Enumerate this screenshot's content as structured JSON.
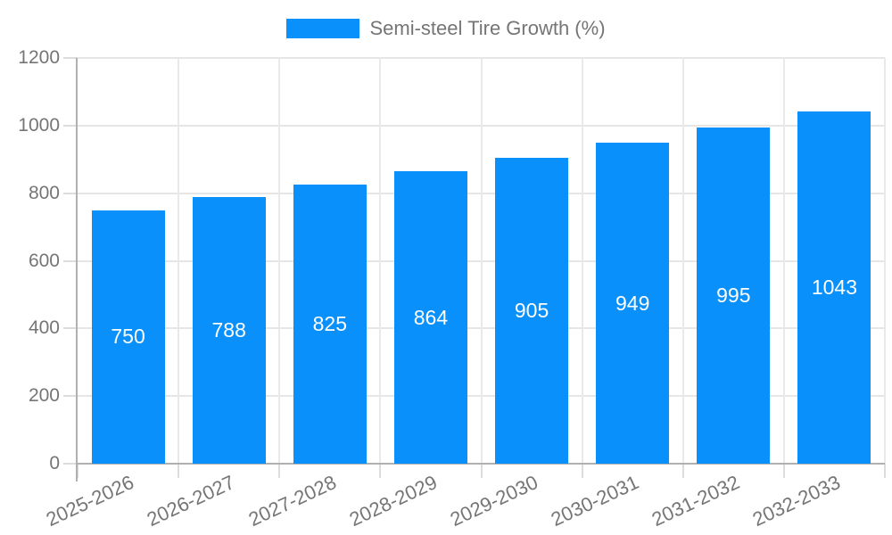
{
  "legend": {
    "label": "Semi-steel Tire Growth (%)"
  },
  "colors": {
    "bar": "#0990fa",
    "axis_text": "#757575",
    "grid": "#e6e6e6",
    "axis_line": "#b0b0b0",
    "value_label": "#ffffff",
    "background": "#ffffff"
  },
  "chart_data": {
    "type": "bar",
    "title": "",
    "categories": [
      "2025-2026",
      "2026-2027",
      "2027-2028",
      "2028-2029",
      "2029-2030",
      "2030-2031",
      "2031-2032",
      "2032-2033"
    ],
    "series": [
      {
        "name": "Semi-steel Tire Growth (%)",
        "values": [
          750,
          788,
          825,
          864,
          905,
          949,
          995,
          1043
        ]
      }
    ],
    "xlabel": "",
    "ylabel": "",
    "ylim": [
      0,
      1200
    ],
    "yticks": [
      0,
      200,
      400,
      600,
      800,
      1000,
      1200
    ],
    "grid": true,
    "legend_position": "top",
    "bar_value_labels": true,
    "x_label_rotation_deg": -25
  }
}
